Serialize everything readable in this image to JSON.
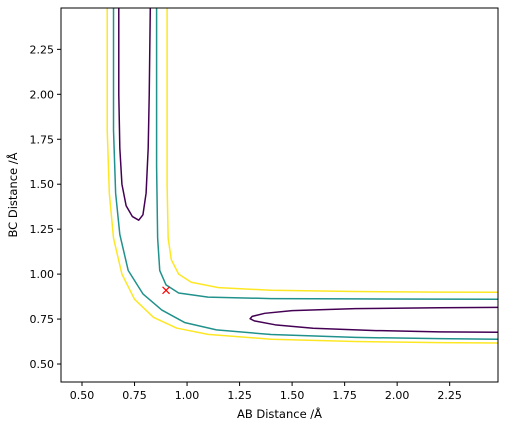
{
  "chart_data": {
    "type": "contour",
    "title": "",
    "xlabel": "AB Distance /Å",
    "ylabel": "BC Distance /Å",
    "xlim": [
      0.4,
      2.48
    ],
    "ylim": [
      0.4,
      2.48
    ],
    "xticks": [
      0.5,
      0.75,
      1.0,
      1.25,
      1.5,
      1.75,
      2.0,
      2.25
    ],
    "yticks": [
      0.5,
      0.75,
      1.0,
      1.25,
      1.5,
      1.75,
      2.0,
      2.25
    ],
    "xtick_labels": [
      "0.50",
      "0.75",
      "1.00",
      "1.25",
      "1.50",
      "1.75",
      "2.00",
      "2.25"
    ],
    "ytick_labels": [
      "0.50",
      "0.75",
      "1.00",
      "1.25",
      "1.50",
      "1.75",
      "2.00",
      "2.25"
    ],
    "grid": false,
    "contours": [
      {
        "color": "#fde725",
        "segments": [
          [
            [
              0.62,
              2.48
            ],
            [
              0.62,
              1.8
            ],
            [
              0.63,
              1.45
            ],
            [
              0.65,
              1.2
            ],
            [
              0.69,
              1.0
            ],
            [
              0.75,
              0.86
            ],
            [
              0.84,
              0.76
            ],
            [
              0.95,
              0.7
            ],
            [
              1.1,
              0.665
            ],
            [
              1.4,
              0.638
            ],
            [
              1.8,
              0.625
            ],
            [
              2.2,
              0.619
            ],
            [
              2.48,
              0.617
            ]
          ],
          [
            [
              0.905,
              2.48
            ],
            [
              0.905,
              1.5
            ],
            [
              0.91,
              1.2
            ],
            [
              0.925,
              1.08
            ],
            [
              0.96,
              1.0
            ],
            [
              1.02,
              0.955
            ],
            [
              1.15,
              0.925
            ],
            [
              1.4,
              0.91
            ],
            [
              1.8,
              0.903
            ],
            [
              2.2,
              0.9
            ],
            [
              2.48,
              0.899
            ]
          ]
        ]
      },
      {
        "color": "#21918c",
        "segments": [
          [
            [
              0.65,
              2.48
            ],
            [
              0.65,
              1.8
            ],
            [
              0.66,
              1.45
            ],
            [
              0.68,
              1.22
            ],
            [
              0.72,
              1.02
            ],
            [
              0.79,
              0.89
            ],
            [
              0.88,
              0.8
            ],
            [
              0.99,
              0.73
            ],
            [
              1.14,
              0.69
            ],
            [
              1.4,
              0.664
            ],
            [
              1.8,
              0.648
            ],
            [
              2.2,
              0.641
            ],
            [
              2.48,
              0.638
            ]
          ],
          [
            [
              0.855,
              2.48
            ],
            [
              0.855,
              1.6
            ],
            [
              0.86,
              1.2
            ],
            [
              0.87,
              1.02
            ],
            [
              0.9,
              0.94
            ],
            [
              0.96,
              0.895
            ],
            [
              1.1,
              0.872
            ],
            [
              1.4,
              0.864
            ],
            [
              1.8,
              0.862
            ],
            [
              2.2,
              0.861
            ],
            [
              2.48,
              0.86
            ]
          ]
        ]
      },
      {
        "color": "#440154",
        "segments": [
          [
            [
              0.675,
              2.48
            ],
            [
              0.675,
              2.0
            ],
            [
              0.68,
              1.7
            ],
            [
              0.69,
              1.5
            ],
            [
              0.71,
              1.38
            ],
            [
              0.74,
              1.32
            ],
            [
              0.77,
              1.3
            ],
            [
              0.79,
              1.33
            ],
            [
              0.805,
              1.45
            ],
            [
              0.815,
              1.7
            ],
            [
              0.82,
              2.0
            ],
            [
              0.825,
              2.48
            ]
          ],
          [
            [
              2.48,
              0.815
            ],
            [
              2.2,
              0.813
            ],
            [
              1.8,
              0.808
            ],
            [
              1.5,
              0.797
            ],
            [
              1.37,
              0.782
            ],
            [
              1.31,
              0.765
            ],
            [
              1.3,
              0.752
            ],
            [
              1.32,
              0.74
            ],
            [
              1.42,
              0.718
            ],
            [
              1.6,
              0.699
            ],
            [
              1.9,
              0.686
            ],
            [
              2.2,
              0.679
            ],
            [
              2.48,
              0.677
            ]
          ]
        ]
      }
    ],
    "marker": {
      "symbol": "x",
      "color": "#ff0000",
      "x": 0.9,
      "y": 0.91
    }
  }
}
